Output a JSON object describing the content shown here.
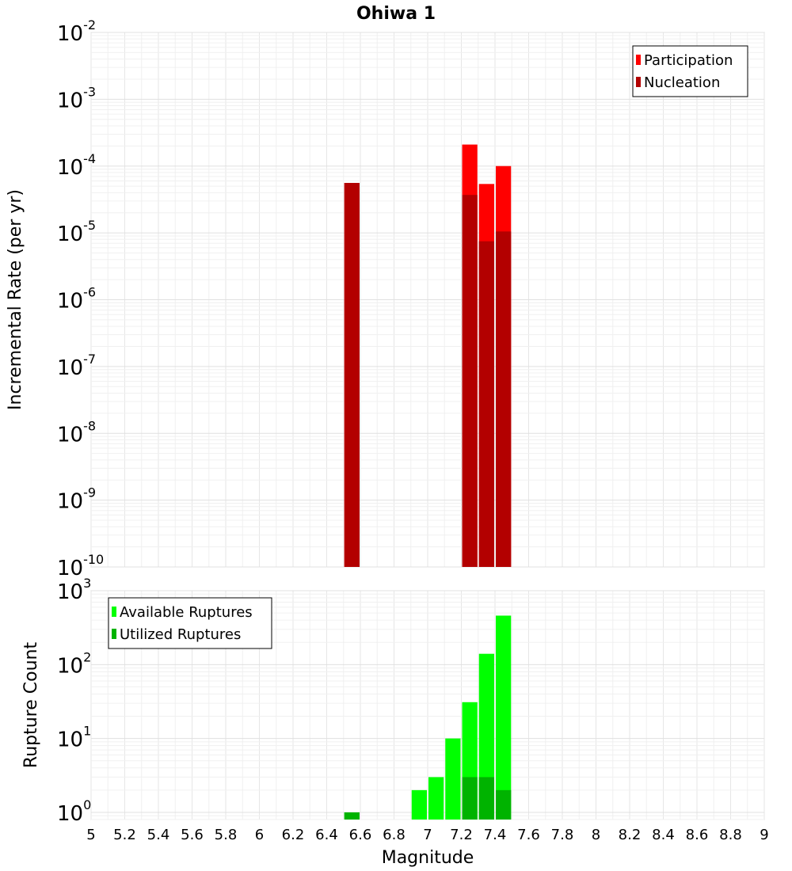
{
  "title": "Ohiwa 1",
  "colors": {
    "participation": "#ff0000",
    "nucleation": "#b30000",
    "available": "#00ff00",
    "utilized": "#00b300"
  },
  "chart_data": [
    {
      "type": "bar",
      "title": "Ohiwa 1",
      "xlabel": "",
      "ylabel": "Incremental Rate (per yr)",
      "yscale": "log",
      "ylim": [
        1e-10,
        0.01
      ],
      "xlim": [
        5,
        9
      ],
      "bar_width": 0.1,
      "y_ticks": [
        {
          "base": "10",
          "exp": "-10"
        },
        {
          "base": "10",
          "exp": "-9"
        },
        {
          "base": "10",
          "exp": "-8"
        },
        {
          "base": "10",
          "exp": "-7"
        },
        {
          "base": "10",
          "exp": "-6"
        },
        {
          "base": "10",
          "exp": "-5"
        },
        {
          "base": "10",
          "exp": "-4"
        },
        {
          "base": "10",
          "exp": "-3"
        },
        {
          "base": "10",
          "exp": "-2"
        }
      ],
      "grid": true,
      "legend_position": "top-right",
      "series": [
        {
          "name": "Participation",
          "color": "#ff0000",
          "points": [
            {
              "x": 6.55,
              "y": 5.6e-05
            },
            {
              "x": 7.25,
              "y": 0.00021
            },
            {
              "x": 7.35,
              "y": 5.4e-05
            },
            {
              "x": 7.45,
              "y": 0.0001
            }
          ]
        },
        {
          "name": "Nucleation",
          "color": "#b30000",
          "points": [
            {
              "x": 6.55,
              "y": 5.6e-05
            },
            {
              "x": 7.25,
              "y": 3.7e-05
            },
            {
              "x": 7.35,
              "y": 7.5e-06
            },
            {
              "x": 7.45,
              "y": 1.05e-05
            }
          ]
        }
      ]
    },
    {
      "type": "bar",
      "xlabel": "Magnitude",
      "ylabel": "Rupture Count",
      "yscale": "log",
      "ylim": [
        0.8,
        1000
      ],
      "xlim": [
        5,
        9
      ],
      "bar_width": 0.1,
      "x_ticks": [
        "5",
        "5.2",
        "5.4",
        "5.6",
        "5.8",
        "6",
        "6.2",
        "6.4",
        "6.6",
        "6.8",
        "7",
        "7.2",
        "7.4",
        "7.6",
        "7.8",
        "8",
        "8.2",
        "8.4",
        "8.6",
        "8.8",
        "9"
      ],
      "y_ticks": [
        {
          "base": "10",
          "exp": "0"
        },
        {
          "base": "10",
          "exp": "1"
        },
        {
          "base": "10",
          "exp": "2"
        },
        {
          "base": "10",
          "exp": "3"
        }
      ],
      "grid": true,
      "legend_position": "top-left",
      "series": [
        {
          "name": "Available Ruptures",
          "color": "#00ff00",
          "points": [
            {
              "x": 6.55,
              "y": 1
            },
            {
              "x": 6.95,
              "y": 2
            },
            {
              "x": 7.05,
              "y": 3
            },
            {
              "x": 7.15,
              "y": 10
            },
            {
              "x": 7.25,
              "y": 31
            },
            {
              "x": 7.35,
              "y": 140
            },
            {
              "x": 7.45,
              "y": 460
            }
          ]
        },
        {
          "name": "Utilized Ruptures",
          "color": "#00b300",
          "points": [
            {
              "x": 6.55,
              "y": 1
            },
            {
              "x": 7.25,
              "y": 3
            },
            {
              "x": 7.35,
              "y": 3
            },
            {
              "x": 7.45,
              "y": 2
            }
          ]
        }
      ]
    }
  ]
}
